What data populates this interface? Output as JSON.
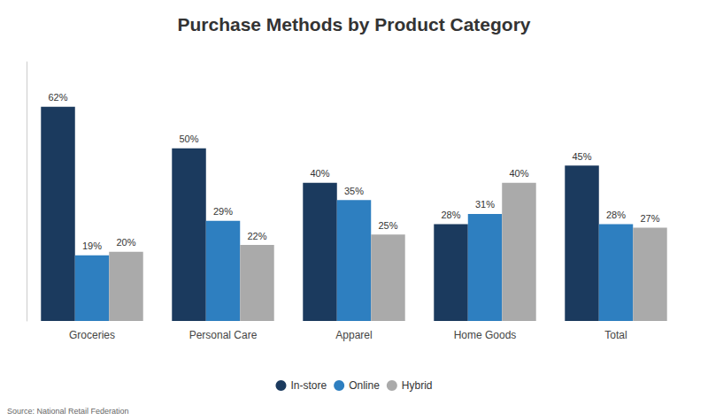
{
  "chart_data": {
    "type": "bar",
    "title": "Purchase Methods by Product Category",
    "categories": [
      "Groceries",
      "Personal Care",
      "Apparel",
      "Home Goods",
      "Total"
    ],
    "series": [
      {
        "name": "In-store",
        "color": "#1b3a5e",
        "values": [
          62,
          50,
          40,
          28,
          45
        ],
        "value_labels": [
          "62%",
          "50%",
          "40%",
          "28%",
          "45%"
        ]
      },
      {
        "name": "Online",
        "color": "#2e7fc0",
        "values": [
          19,
          29,
          35,
          31,
          28
        ],
        "value_labels": [
          "19%",
          "29%",
          "35%",
          "31%",
          "28%"
        ]
      },
      {
        "name": "Hybrid",
        "color": "#aaaaaa",
        "values": [
          20,
          22,
          25,
          40,
          27
        ],
        "value_labels": [
          "20%",
          "22%",
          "25%",
          "40%",
          "27%"
        ]
      }
    ],
    "ylim": [
      0,
      75
    ],
    "grid": false,
    "legend": "bottom",
    "data_labels": true,
    "tick_labels": "x",
    "annotations": [
      "Source: National Retail Federation"
    ]
  }
}
